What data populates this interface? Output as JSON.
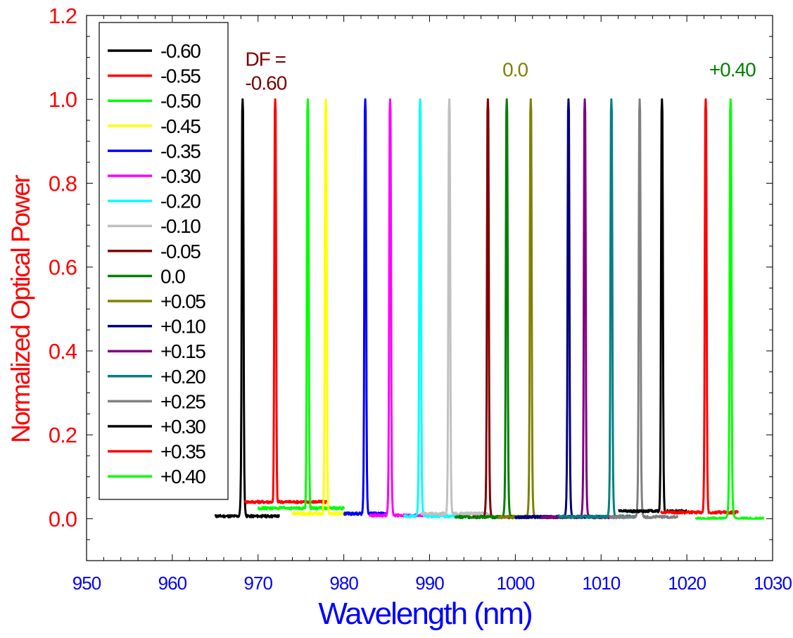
{
  "chart_data": {
    "type": "line",
    "xlabel": "Wavelength (nm)",
    "ylabel": "Normalized Optical Power",
    "xlim": [
      950,
      1030
    ],
    "ylim": [
      -0.1,
      1.2
    ],
    "x_ticks": [
      "950",
      "960",
      "970",
      "980",
      "990",
      "1000",
      "1010",
      "1020",
      "1030"
    ],
    "y_ticks": [
      "0.0",
      "0.2",
      "0.4",
      "0.6",
      "0.8",
      "1.0",
      "1.2"
    ],
    "x_tick_values": [
      950,
      960,
      970,
      980,
      990,
      1000,
      1010,
      1020,
      1030
    ],
    "y_tick_values": [
      0.0,
      0.2,
      0.4,
      0.6,
      0.8,
      1.0,
      1.2
    ],
    "grid": false,
    "legend_position": "top-left",
    "colors": {
      "ylabel": "#ff0000",
      "xlabel": "#0000ff",
      "y_ticks": "#ff0000",
      "x_ticks": "#0000ff"
    },
    "annotations": [
      {
        "lines": [
          "DF =",
          "-0.60"
        ],
        "x": 968.5,
        "y": 1.08,
        "color": "#7b0000"
      },
      {
        "lines": [
          "0.0"
        ],
        "x": 998.5,
        "y": 1.055,
        "color": "#808000"
      },
      {
        "lines": [
          "+0.40"
        ],
        "x": 1022.6,
        "y": 1.055,
        "color": "#008000"
      }
    ],
    "series": [
      {
        "name": "-0.60",
        "color": "#000000",
        "peak": 968.2,
        "base": 0.006,
        "range": [
          965,
          972.5
        ]
      },
      {
        "name": "-0.55",
        "color": "#ff0000",
        "peak": 972.0,
        "base": 0.04,
        "range": [
          968.5,
          978
        ]
      },
      {
        "name": "-0.50",
        "color": "#00ff00",
        "peak": 975.8,
        "base": 0.025,
        "range": [
          970,
          980
        ]
      },
      {
        "name": "-0.45",
        "color": "#ffff00",
        "peak": 977.9,
        "base": 0.012,
        "range": [
          974,
          982
        ]
      },
      {
        "name": "-0.35",
        "color": "#0000ff",
        "peak": 982.5,
        "base": 0.012,
        "range": [
          980,
          985
        ]
      },
      {
        "name": "-0.30",
        "color": "#ff00ff",
        "peak": 985.4,
        "base": 0.008,
        "range": [
          983,
          990
        ]
      },
      {
        "name": "-0.20",
        "color": "#00ffff",
        "peak": 988.9,
        "base": 0.006,
        "range": [
          987,
          994
        ]
      },
      {
        "name": "-0.10",
        "color": "#c0c0c0",
        "peak": 992.3,
        "base": 0.012,
        "range": [
          989,
          997
        ]
      },
      {
        "name": "-0.05",
        "color": "#800000",
        "peak": 996.8,
        "base": 0.004,
        "range": [
          995,
          1000
        ]
      },
      {
        "name": "0.0",
        "color": "#008000",
        "peak": 999.0,
        "base": 0.004,
        "range": [
          993,
          1005
        ]
      },
      {
        "name": "+0.05",
        "color": "#808000",
        "peak": 1001.8,
        "base": 0.004,
        "range": [
          998,
          1007
        ]
      },
      {
        "name": "+0.10",
        "color": "#000080",
        "peak": 1006.2,
        "base": 0.004,
        "range": [
          1000,
          1010
        ]
      },
      {
        "name": "+0.15",
        "color": "#800080",
        "peak": 1008.1,
        "base": 0.004,
        "range": [
          1003,
          1012
        ]
      },
      {
        "name": "+0.20",
        "color": "#008080",
        "peak": 1011.2,
        "base": 0.005,
        "range": [
          1005,
          1014
        ]
      },
      {
        "name": "+0.25",
        "color": "#808080",
        "peak": 1014.5,
        "base": 0.004,
        "range": [
          1011,
          1019
        ]
      },
      {
        "name": "+0.30",
        "color": "#000000",
        "peak": 1017.1,
        "base": 0.018,
        "range": [
          1012,
          1020
        ]
      },
      {
        "name": "+0.35",
        "color": "#ff0000",
        "peak": 1022.2,
        "base": 0.015,
        "range": [
          1017,
          1026
        ]
      },
      {
        "name": "+0.40",
        "color": "#00ff00",
        "peak": 1025.1,
        "base": 0.0,
        "range": [
          1021,
          1029
        ]
      }
    ]
  }
}
